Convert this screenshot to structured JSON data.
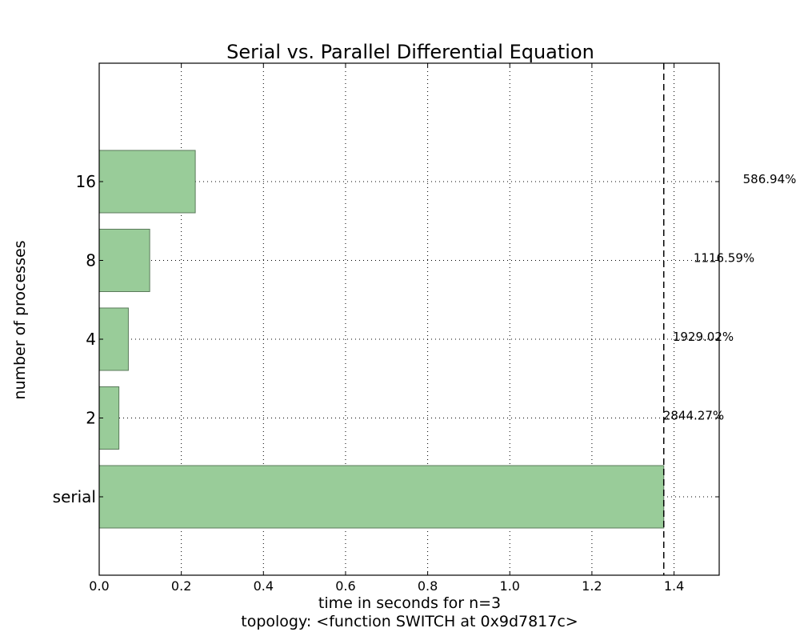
{
  "chart_data": {
    "type": "bar",
    "orientation": "horizontal",
    "title": "Serial vs. Parallel Differential Equation",
    "xlabel": "time in seconds for n=3",
    "xlabel2": "topology: <function SWITCH at 0x9d7817c>",
    "ylabel": "number of processes",
    "categories": [
      "serial",
      "2",
      "4",
      "8",
      "16"
    ],
    "values": [
      1.375,
      0.048,
      0.071,
      0.123,
      0.234
    ],
    "speedup_labels": [
      "",
      "2844.27%",
      "1929.02%",
      "1116.59%",
      "586.94%"
    ],
    "xlim": [
      0,
      1.51
    ],
    "xticks": [
      "0.0",
      "0.2",
      "0.4",
      "0.6",
      "0.8",
      "1.0",
      "1.2",
      "1.4"
    ],
    "reference_line_x": 1.375,
    "grid": true,
    "bar_color": "#99cc99",
    "bar_edge_color": "#5a7a5a"
  }
}
